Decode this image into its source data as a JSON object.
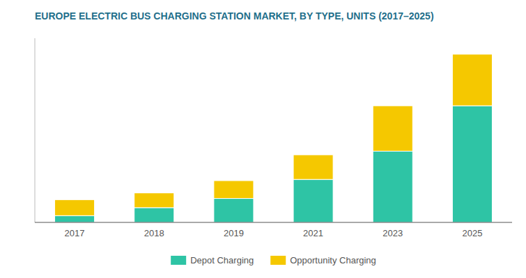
{
  "chart_data": {
    "type": "bar",
    "title": "EUROPE ELECTRIC BUS CHARGING STATION MARKET, BY TYPE, UNITS (2017–2025)",
    "categories": [
      "2017",
      "2018",
      "2019",
      "2021",
      "2023",
      "2025"
    ],
    "series": [
      {
        "name": "Depot Charging",
        "color": "#2ec4a5",
        "values": [
          55,
          120,
          195,
          350,
          580,
          950
        ]
      },
      {
        "name": "Opportunity Charging",
        "color": "#f5c800",
        "values": [
          130,
          120,
          145,
          200,
          370,
          420
        ]
      }
    ],
    "stacked": true,
    "ylim": [
      0,
      1500
    ],
    "yticks": [],
    "grid": false,
    "tick_labels": "x",
    "legend": "bottom"
  }
}
